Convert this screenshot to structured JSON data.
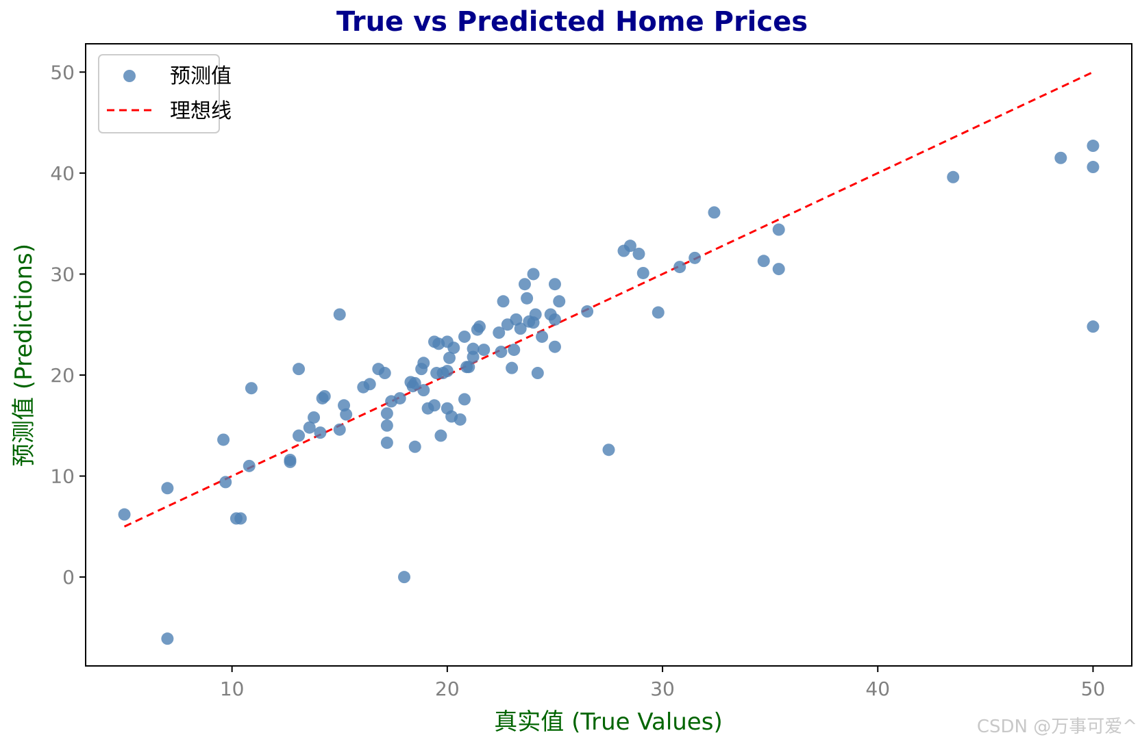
{
  "chart_data": {
    "type": "scatter",
    "title": "True vs Predicted Home Prices",
    "xlabel": "真实值 (True Values)",
    "ylabel": "预测值 (Predictions)",
    "xlim": [
      3.2,
      51.8
    ],
    "ylim": [
      -8.8,
      52.8
    ],
    "xticks": [
      10,
      20,
      30,
      40,
      50
    ],
    "yticks": [
      0,
      10,
      20,
      30,
      40,
      50
    ],
    "grid": false,
    "legend_position": "top-left",
    "colors": {
      "points": "#4f81b4",
      "line": "#ff0000",
      "title": "#00008b",
      "axis_label": "#006400",
      "tick": "#808080"
    },
    "series": [
      {
        "name": "预测值",
        "kind": "scatter",
        "points": [
          [
            5.0,
            6.2
          ],
          [
            7.0,
            8.8
          ],
          [
            7.0,
            -6.1
          ],
          [
            9.6,
            13.6
          ],
          [
            9.7,
            9.4
          ],
          [
            10.2,
            5.8
          ],
          [
            10.4,
            5.8
          ],
          [
            10.8,
            11.0
          ],
          [
            10.9,
            18.7
          ],
          [
            12.7,
            11.6
          ],
          [
            12.7,
            11.4
          ],
          [
            13.1,
            14.0
          ],
          [
            13.1,
            20.6
          ],
          [
            13.6,
            14.8
          ],
          [
            13.8,
            15.8
          ],
          [
            14.1,
            14.3
          ],
          [
            14.2,
            17.7
          ],
          [
            14.3,
            17.9
          ],
          [
            15.0,
            14.6
          ],
          [
            15.0,
            26.0
          ],
          [
            15.2,
            17.0
          ],
          [
            15.3,
            16.1
          ],
          [
            16.1,
            18.8
          ],
          [
            16.4,
            19.1
          ],
          [
            16.8,
            20.6
          ],
          [
            17.1,
            20.2
          ],
          [
            17.2,
            13.3
          ],
          [
            17.2,
            15.0
          ],
          [
            17.2,
            16.2
          ],
          [
            17.4,
            17.4
          ],
          [
            17.8,
            17.7
          ],
          [
            18.0,
            0.0
          ],
          [
            18.3,
            19.3
          ],
          [
            18.4,
            18.9
          ],
          [
            18.5,
            12.9
          ],
          [
            18.5,
            19.2
          ],
          [
            18.8,
            20.6
          ],
          [
            18.9,
            21.2
          ],
          [
            18.9,
            18.5
          ],
          [
            19.1,
            16.7
          ],
          [
            19.4,
            23.3
          ],
          [
            19.4,
            17.0
          ],
          [
            19.5,
            20.2
          ],
          [
            19.6,
            23.1
          ],
          [
            19.7,
            14.0
          ],
          [
            19.8,
            20.2
          ],
          [
            20.0,
            23.3
          ],
          [
            20.0,
            20.4
          ],
          [
            20.0,
            16.7
          ],
          [
            20.1,
            21.7
          ],
          [
            20.2,
            15.9
          ],
          [
            20.3,
            22.7
          ],
          [
            20.6,
            15.6
          ],
          [
            20.8,
            23.8
          ],
          [
            20.8,
            17.6
          ],
          [
            20.9,
            20.8
          ],
          [
            21.0,
            20.8
          ],
          [
            21.2,
            22.6
          ],
          [
            21.2,
            21.8
          ],
          [
            21.4,
            24.5
          ],
          [
            21.5,
            24.8
          ],
          [
            21.7,
            22.5
          ],
          [
            22.4,
            24.2
          ],
          [
            22.5,
            22.3
          ],
          [
            22.6,
            27.3
          ],
          [
            22.8,
            25.0
          ],
          [
            23.0,
            20.7
          ],
          [
            23.1,
            22.5
          ],
          [
            23.2,
            25.5
          ],
          [
            23.4,
            24.6
          ],
          [
            23.6,
            29.0
          ],
          [
            23.7,
            27.6
          ],
          [
            23.8,
            25.3
          ],
          [
            24.0,
            30.0
          ],
          [
            24.0,
            25.2
          ],
          [
            24.1,
            26.0
          ],
          [
            24.2,
            20.2
          ],
          [
            24.4,
            23.8
          ],
          [
            24.8,
            26.0
          ],
          [
            25.0,
            29.0
          ],
          [
            25.0,
            22.8
          ],
          [
            25.0,
            25.5
          ],
          [
            25.2,
            27.3
          ],
          [
            26.5,
            26.3
          ],
          [
            27.5,
            12.6
          ],
          [
            28.2,
            32.3
          ],
          [
            28.5,
            32.8
          ],
          [
            28.9,
            32.0
          ],
          [
            29.1,
            30.1
          ],
          [
            29.8,
            26.2
          ],
          [
            30.8,
            30.7
          ],
          [
            31.5,
            31.6
          ],
          [
            32.4,
            36.1
          ],
          [
            34.7,
            31.3
          ],
          [
            35.4,
            34.4
          ],
          [
            35.4,
            30.5
          ],
          [
            43.5,
            39.6
          ],
          [
            48.5,
            41.5
          ],
          [
            50.0,
            42.7
          ],
          [
            50.0,
            40.6
          ],
          [
            50.0,
            24.8
          ]
        ]
      },
      {
        "name": "理想线",
        "kind": "line",
        "style": "dashed",
        "points": [
          [
            5.0,
            5.0
          ],
          [
            50.0,
            50.0
          ]
        ]
      }
    ]
  },
  "watermark": "CSDN @万事可爱^"
}
